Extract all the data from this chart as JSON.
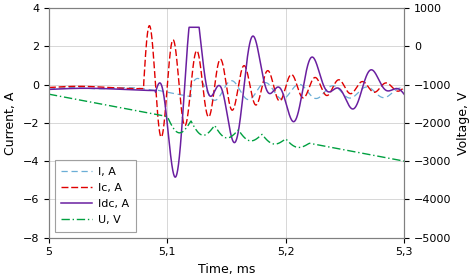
{
  "xlim": [
    5.0,
    5.3
  ],
  "ylim_left": [
    -8,
    4
  ],
  "ylim_right": [
    -5000,
    1000
  ],
  "xlabel": "Time, ms",
  "ylabel_left": "Current, A",
  "ylabel_right": "Voltage, V",
  "xticks": [
    5.0,
    5.1,
    5.2,
    5.3
  ],
  "xtick_labels": [
    "5",
    "5,1",
    "5,2",
    "5,3"
  ],
  "yticks_left": [
    -8,
    -6,
    -4,
    -2,
    0,
    2,
    4
  ],
  "yticks_right": [
    -5000,
    -4000,
    -3000,
    -2000,
    -1000,
    0,
    1000
  ],
  "grid_color": "#c8c8c8",
  "bg_color": "#ffffff",
  "line_I_color": "#6baed6",
  "line_Ic_color": "#e00000",
  "line_Idc_color": "#6a1fa0",
  "line_U_color": "#00a040",
  "legend_labels": [
    "I, A",
    "Ic, A",
    "Idc, A",
    "U, V"
  ],
  "axis_fontsize": 9,
  "tick_fontsize": 8,
  "legend_fontsize": 8
}
